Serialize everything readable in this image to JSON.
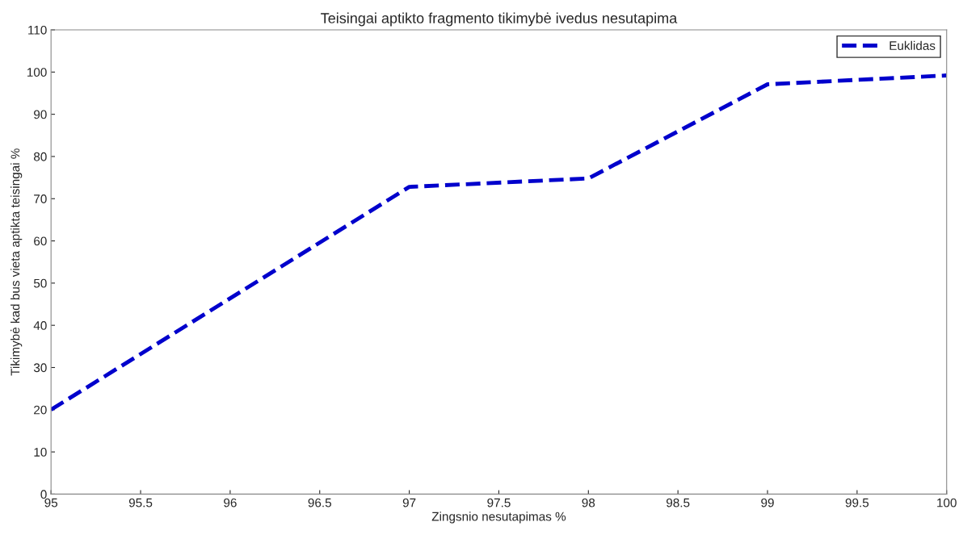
{
  "chart_data": {
    "type": "line",
    "title": "Teisingai aptikto fragmento tikimybė ivedus nesutapima",
    "xlabel": "Zingsnio nesutapimas %",
    "ylabel": "Tikimybė kad bus vieta aptikta teisingai %",
    "x": [
      95,
      97,
      98,
      99,
      100
    ],
    "series": [
      {
        "name": "Euklidas",
        "color": "#0000cc",
        "values": [
          20,
          72.8,
          74.8,
          97.1,
          99.2
        ]
      }
    ],
    "xlim": [
      95,
      100
    ],
    "xticks": [
      95,
      95.5,
      96,
      96.5,
      97,
      97.5,
      98,
      98.5,
      99,
      99.5,
      100
    ],
    "ylim": [
      0,
      110
    ],
    "yticks": [
      0,
      10,
      20,
      30,
      40,
      50,
      60,
      70,
      80,
      90,
      100,
      110
    ],
    "grid": false,
    "legend": "top right",
    "line_style": "dashed",
    "marker": "none"
  }
}
